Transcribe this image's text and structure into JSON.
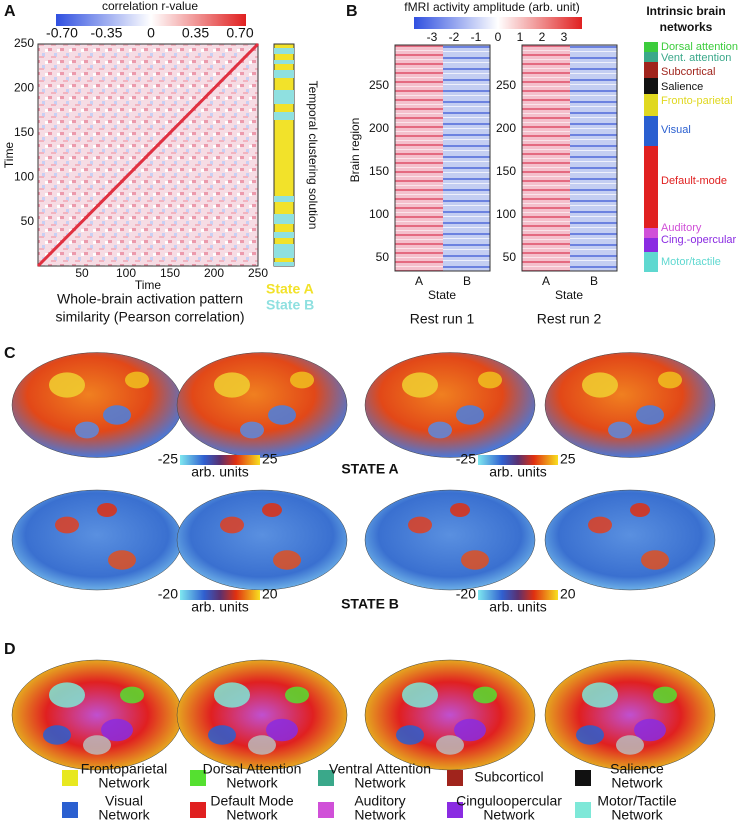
{
  "panel_a": {
    "label": "A",
    "colorbar_title": "correlation r-value",
    "colorbar_ticks": [
      "-0.70",
      "-0.35",
      "0",
      "0.35",
      "0.70"
    ],
    "y_label": "Time",
    "x_label": "Time",
    "y_ticks": [
      "50",
      "100",
      "150",
      "200",
      "250"
    ],
    "x_ticks": [
      "50",
      "100",
      "150",
      "200",
      "250"
    ],
    "side_label": "Temporal clustering solution",
    "caption": [
      "Whole-brain activation pattern",
      "similarity (Pearson correlation)"
    ],
    "legend": [
      {
        "name": "State A",
        "color": "#f2e22a"
      },
      {
        "name": "State B",
        "color": "#8fe0e0"
      }
    ]
  },
  "panel_b": {
    "label": "B",
    "colorbar_title": "fMRI activity amplitude (arb. unit)",
    "colorbar_ticks": [
      "-3",
      "-2",
      "-1",
      "0",
      "1",
      "2",
      "3"
    ],
    "y_label": "Brain region",
    "y_ticks": [
      "50",
      "100",
      "150",
      "200",
      "250"
    ],
    "states": [
      "A",
      "B"
    ],
    "x_label": "State",
    "runs": [
      "Rest run 1",
      "Rest run 2"
    ],
    "networks_title": [
      "Intrinsic brain",
      "networks"
    ],
    "networks": [
      {
        "name": "Dorsal attention",
        "color": "#3ccc3c"
      },
      {
        "name": "Vent. attention",
        "color": "#3aa88a"
      },
      {
        "name": "Subcortical",
        "color": "#a0241c"
      },
      {
        "name": "Salience",
        "color": "#111111"
      },
      {
        "name": "Fronto-parietal",
        "color": "#e0d820"
      },
      {
        "name": "Visual",
        "color": "#2a5fd0"
      },
      {
        "name": "Default-mode",
        "color": "#e02020"
      },
      {
        "name": "Auditory",
        "color": "#d050d8"
      },
      {
        "name": "Cing.-opercular",
        "color": "#8a2be2"
      },
      {
        "name": "Motor/tactile",
        "color": "#5fd8d0"
      }
    ]
  },
  "panel_c": {
    "label": "C",
    "state_a": {
      "title": "STATE A",
      "colorbar_min": "-25",
      "colorbar_max": "25",
      "unit": "arb. units"
    },
    "state_b": {
      "title": "STATE B",
      "colorbar_min": "-20",
      "colorbar_max": "20",
      "unit": "arb. units"
    }
  },
  "panel_d": {
    "label": "D",
    "legend": [
      {
        "lines": [
          "Frontoparietal",
          "Network"
        ],
        "color": "#e8e820"
      },
      {
        "lines": [
          "Dorsal Attention",
          "Network"
        ],
        "color": "#55e030"
      },
      {
        "lines": [
          "Ventral Attention",
          "Network"
        ],
        "color": "#3aa88a"
      },
      {
        "lines": [
          "Subcorticol"
        ],
        "color": "#a0241c"
      },
      {
        "lines": [
          "Salience",
          "Network"
        ],
        "color": "#111111"
      },
      {
        "lines": [
          "Visual",
          "Network"
        ],
        "color": "#2a5fd0"
      },
      {
        "lines": [
          "Default Mode",
          "Network"
        ],
        "color": "#e02020"
      },
      {
        "lines": [
          "Auditory",
          "Network"
        ],
        "color": "#d050d8"
      },
      {
        "lines": [
          "Cinguloopercular",
          "Network"
        ],
        "color": "#8a2be2"
      },
      {
        "lines": [
          "Motor/Tactile",
          "Network"
        ],
        "color": "#7ee8d8"
      }
    ]
  }
}
